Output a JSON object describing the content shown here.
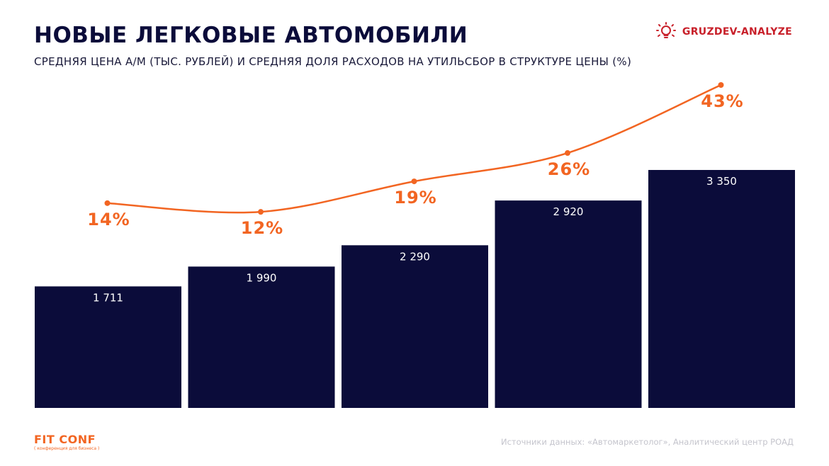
{
  "header": {
    "title": "НОВЫЕ ЛЕГКОВЫЕ АВТОМОБИЛИ",
    "subtitle": "СРЕДНЯЯ ЦЕНА А/М (ТЫС. РУБЛЕЙ) И СРЕДНЯЯ ДОЛЯ РАСХОДОВ НА УТИЛЬСБОР В СТРУКТУРЕ ЦЕНЫ (%)"
  },
  "brand": {
    "name": "GRUZDEV-ANALYZE",
    "icon": "lightbulb-icon",
    "color": "#c8202a"
  },
  "footer": {
    "logo": "FIT CONF",
    "logo_sub": "( конференция для бизнеса )",
    "source": "Источники данных: «Автомаркетолог», Аналитический центр РОАД"
  },
  "colors": {
    "bar": "#0b0c3a",
    "line": "#f26522",
    "bar_label": "#ffffff"
  },
  "chart_data": {
    "type": "bar",
    "series": [
      {
        "values": [
          1711,
          1990,
          2290,
          2920,
          3350
        ],
        "labels": [
          "1 711",
          "1 990",
          "2 290",
          "2 920",
          "3 350"
        ]
      },
      {
        "type": "line",
        "values": [
          14,
          12,
          19,
          26,
          43
        ],
        "labels": [
          "14%",
          "12%",
          "19%",
          "26%",
          "43%"
        ]
      }
    ],
    "legend": "none",
    "grid": false
  }
}
